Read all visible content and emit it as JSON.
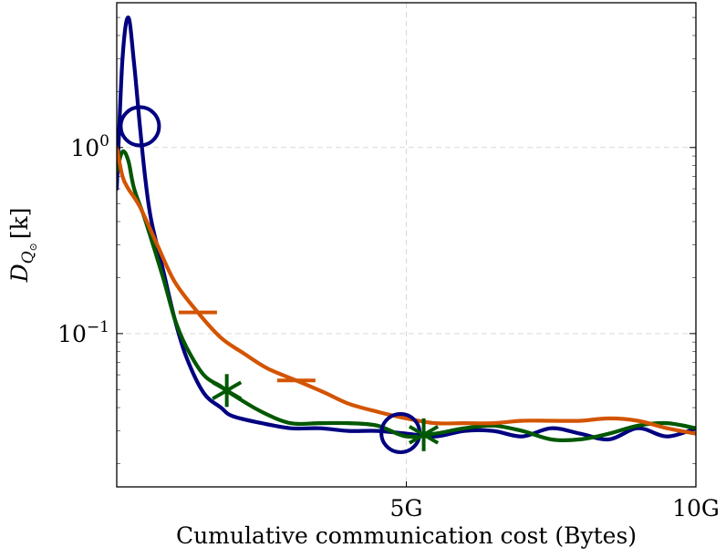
{
  "chart_data": {
    "type": "line",
    "title": "",
    "xlabel": "Cumulative communication cost (Bytes)",
    "ylabel": {
      "base": "D",
      "sub": "Q",
      "subsub": "⊙",
      "suffix": "[k]"
    },
    "x_scale": "linear",
    "y_scale": "log",
    "xlim": [
      0,
      10
    ],
    "ylim": [
      0.015,
      6.0
    ],
    "x_ticks": [
      {
        "value": 5,
        "label": "5G"
      },
      {
        "value": 10,
        "label": "10G"
      }
    ],
    "y_ticks": [
      {
        "value": 1,
        "base": "10",
        "exp": "0"
      },
      {
        "value": 0.1,
        "base": "10",
        "exp": "−1"
      }
    ],
    "grid": true,
    "legend": "none",
    "series": [
      {
        "color": "#000080",
        "marker": "circle",
        "marker_x": [
          0.4,
          4.9
        ],
        "x": [
          0.0,
          0.1,
          0.2,
          0.3,
          0.4,
          0.5,
          0.6,
          0.8,
          1.0,
          1.2,
          1.5,
          1.8,
          2.0,
          2.5,
          3.0,
          3.5,
          4.0,
          4.5,
          5.0,
          5.5,
          6.0,
          6.5,
          7.0,
          7.5,
          8.0,
          8.5,
          9.0,
          9.5,
          10.0
        ],
        "y": [
          0.6,
          3.0,
          5.0,
          2.8,
          1.3,
          0.65,
          0.4,
          0.22,
          0.12,
          0.075,
          0.048,
          0.04,
          0.036,
          0.033,
          0.031,
          0.031,
          0.03,
          0.03,
          0.029,
          0.028,
          0.03,
          0.03,
          0.028,
          0.031,
          0.029,
          0.027,
          0.031,
          0.028,
          0.031
        ]
      },
      {
        "color": "#005800",
        "marker": "asterisk",
        "marker_x": [
          1.9,
          5.3
        ],
        "x": [
          0.0,
          0.1,
          0.2,
          0.3,
          0.5,
          0.8,
          1.0,
          1.2,
          1.5,
          1.8,
          2.0,
          2.5,
          3.0,
          3.5,
          4.0,
          4.5,
          5.0,
          5.5,
          6.0,
          6.5,
          7.0,
          7.5,
          8.0,
          8.5,
          9.0,
          9.5,
          10.0
        ],
        "y": [
          0.75,
          0.95,
          0.85,
          0.6,
          0.4,
          0.2,
          0.12,
          0.085,
          0.06,
          0.052,
          0.047,
          0.038,
          0.033,
          0.033,
          0.033,
          0.032,
          0.028,
          0.029,
          0.031,
          0.032,
          0.03,
          0.027,
          0.027,
          0.029,
          0.032,
          0.033,
          0.031
        ]
      },
      {
        "color": "#d35400",
        "marker": "dash",
        "marker_x": [
          1.4,
          3.1
        ],
        "x": [
          0.0,
          0.1,
          0.2,
          0.4,
          0.7,
          1.0,
          1.4,
          1.8,
          2.2,
          2.6,
          3.1,
          3.6,
          4.0,
          4.5,
          5.0,
          5.5,
          6.0,
          6.5,
          7.0,
          7.5,
          8.0,
          8.5,
          9.0,
          9.5,
          10.0
        ],
        "y": [
          1.0,
          0.7,
          0.6,
          0.48,
          0.3,
          0.19,
          0.13,
          0.095,
          0.078,
          0.065,
          0.056,
          0.048,
          0.042,
          0.038,
          0.035,
          0.033,
          0.033,
          0.033,
          0.034,
          0.034,
          0.034,
          0.035,
          0.034,
          0.031,
          0.029
        ]
      }
    ]
  }
}
